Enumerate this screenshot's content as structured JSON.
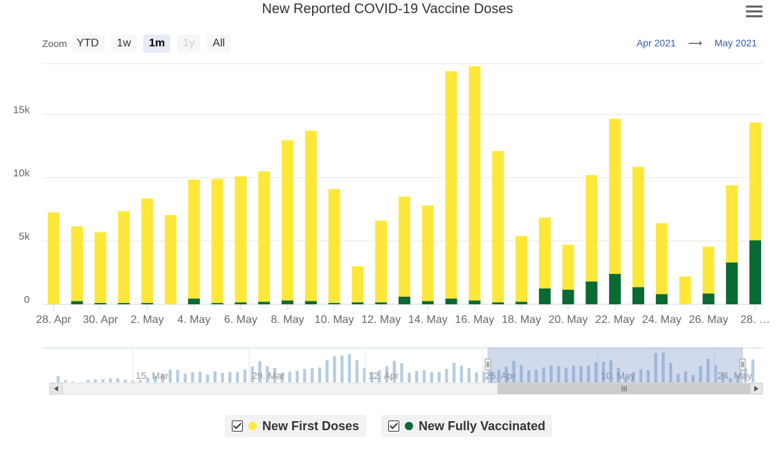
{
  "title": "New Reported COVID-19 Vaccine Doses",
  "menu": {
    "icon": "menu-icon"
  },
  "zoom": {
    "label": "Zoom",
    "buttons": [
      {
        "label": "YTD",
        "state": "normal"
      },
      {
        "label": "1w",
        "state": "normal"
      },
      {
        "label": "1m",
        "state": "active"
      },
      {
        "label": "1y",
        "state": "disabled"
      },
      {
        "label": "All",
        "state": "normal"
      }
    ]
  },
  "range": {
    "from": "Apr 2021",
    "arrow": "⟶",
    "to": "May 2021"
  },
  "colors": {
    "first": "#fde83a",
    "full": "#096b33",
    "navigator": "#b6cce0"
  },
  "chart_data": {
    "type": "bar",
    "stacked": true,
    "title": "New Reported COVID-19 Vaccine Doses",
    "ylim": [
      0,
      19000
    ],
    "yticks": [
      0,
      5000,
      10000,
      15000
    ],
    "ytick_labels": [
      "0",
      "5k",
      "10k",
      "15k"
    ],
    "x_tick_labels": [
      "28. Apr",
      "30. Apr",
      "2. May",
      "4. May",
      "6. May",
      "8. May",
      "10. May",
      "12. May",
      "14. May",
      "16. May",
      "18. May",
      "20. May",
      "22. May",
      "24. May",
      "26. May",
      "28. …"
    ],
    "series": [
      {
        "name": "New First Doses",
        "color": "#fde83a",
        "values": [
          7250,
          5900,
          5600,
          7250,
          8250,
          7050,
          9400,
          9800,
          9950,
          10300,
          12650,
          13450,
          9000,
          2850,
          6450,
          7900,
          7550,
          17950,
          18500,
          11950,
          5200,
          5600,
          3550,
          8400,
          12250,
          9500,
          5600,
          2200,
          3700,
          6100,
          9300
        ]
      },
      {
        "name": "New Fully Vaccinated",
        "color": "#096b33",
        "values": [
          0,
          250,
          100,
          100,
          100,
          0,
          450,
          100,
          150,
          200,
          300,
          250,
          100,
          150,
          150,
          600,
          250,
          450,
          300,
          150,
          200,
          1250,
          1150,
          1800,
          2400,
          1350,
          800,
          0,
          850,
          3300,
          5050
        ]
      }
    ],
    "navigator": {
      "x_labels": [
        "15. Mar",
        "29. Mar",
        "12. Apr",
        "26. Apr",
        "10. May",
        "24. May"
      ],
      "values": [
        4000,
        1500,
        500,
        200,
        1500,
        1800,
        2000,
        2500,
        2500,
        1800,
        1200,
        1300,
        2800,
        3800,
        5000,
        8000,
        7800,
        5600,
        6500,
        6800,
        5000,
        7000,
        6000,
        6700,
        6500,
        8000,
        10000,
        13300,
        10200,
        9000,
        6200,
        6800,
        7300,
        8400,
        9000,
        9300,
        14000,
        16500,
        16800,
        17600,
        14000,
        9200,
        6700,
        7600,
        10200,
        13500,
        12000,
        6000,
        7200,
        7600,
        6500,
        6600,
        8500,
        12200,
        10500,
        9000,
        6300,
        6800,
        7200,
        8000,
        9900,
        13500,
        11000,
        7600,
        8000,
        9400,
        10500,
        10200,
        9300,
        10500,
        10000,
        10500,
        12600,
        13000,
        13700,
        9100,
        2800,
        6600,
        8100,
        7800,
        18400,
        18800,
        12100,
        5400,
        6900,
        4700,
        10200,
        14700,
        10900,
        6400,
        2200,
        4600,
        9400,
        14400
      ],
      "selection": "26. Apr – 28. May"
    }
  },
  "legend": [
    {
      "label": "New First Doses",
      "color": "#fde83a",
      "checked": true
    },
    {
      "label": "New Fully Vaccinated",
      "color": "#096b33",
      "checked": true
    }
  ]
}
